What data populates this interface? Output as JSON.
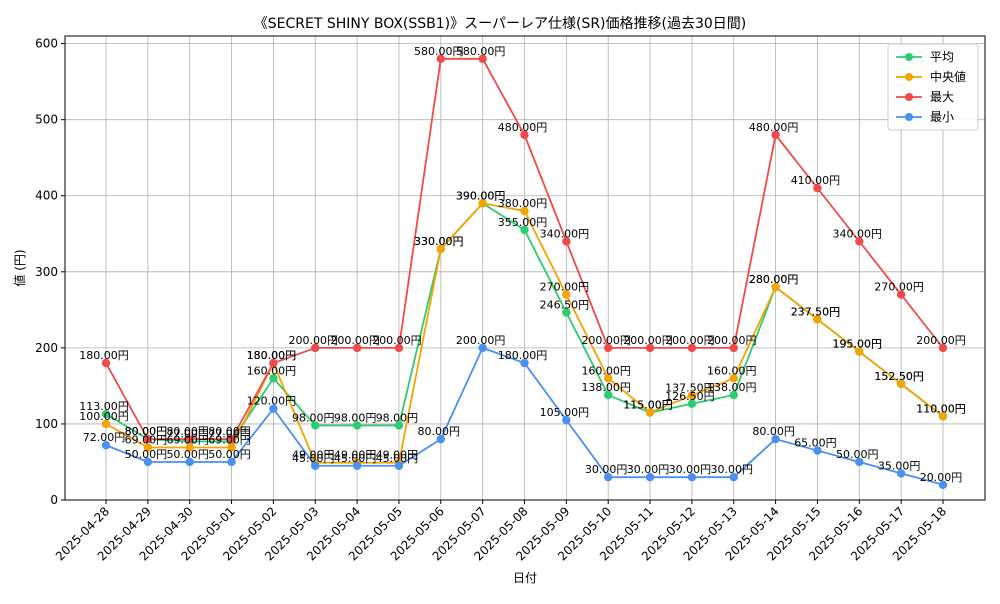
{
  "chart_data": {
    "type": "line",
    "title": "《SECRET SHINY BOX(SSB1)》スーパーレア仕様(SR)価格推移(過去30日間)",
    "xlabel": "日付",
    "ylabel": "値 (円)",
    "ylim": [
      0,
      610
    ],
    "yticks": [
      0,
      100,
      200,
      300,
      400,
      500,
      600
    ],
    "grid": true,
    "legend_position": "top-right",
    "label_suffix": "円",
    "categories": [
      "2025-04-28",
      "2025-04-29",
      "2025-04-30",
      "2025-05-01",
      "2025-05-02",
      "2025-05-03",
      "2025-05-04",
      "2025-05-05",
      "2025-05-06",
      "2025-05-07",
      "2025-05-08",
      "2025-05-09",
      "2025-05-10",
      "2025-05-11",
      "2025-05-12",
      "2025-05-13",
      "2025-05-14",
      "2025-05-15",
      "2025-05-16",
      "2025-05-17",
      "2025-05-18"
    ],
    "series": [
      {
        "name": "平均",
        "key": "avg",
        "color": "#2ecc71",
        "values": [
          113.0,
          80.0,
          77.0,
          77.0,
          160.0,
          98.0,
          98.0,
          98.0,
          330.0,
          390.0,
          355.0,
          246.5,
          138.0,
          115.0,
          126.5,
          138.0,
          280.0,
          237.5,
          195.0,
          152.5,
          110.0
        ]
      },
      {
        "name": "中央値",
        "key": "median",
        "color": "#f5a300",
        "values": [
          100.0,
          69.0,
          69.0,
          69.0,
          180.0,
          49.0,
          49.0,
          49.0,
          330.0,
          390.0,
          380.0,
          270.0,
          160.0,
          115.0,
          137.5,
          160.0,
          280.0,
          237.5,
          195.0,
          152.5,
          110.0
        ]
      },
      {
        "name": "最大",
        "key": "max",
        "color": "#f04a4a",
        "values": [
          180.0,
          80.0,
          80.0,
          80.0,
          180.0,
          200.0,
          200.0,
          200.0,
          580.0,
          580.0,
          480.0,
          340.0,
          200.0,
          200.0,
          200.0,
          200.0,
          480.0,
          410.0,
          340.0,
          270.0,
          200.0
        ]
      },
      {
        "name": "最小",
        "key": "min",
        "color": "#4a90f0",
        "values": [
          72.0,
          50.0,
          50.0,
          50.0,
          120.0,
          45.0,
          45.0,
          45.0,
          80.0,
          200.0,
          180.0,
          105.0,
          30.0,
          30.0,
          30.0,
          30.0,
          80.0,
          65.0,
          50.0,
          35.0,
          20.0
        ]
      }
    ]
  }
}
